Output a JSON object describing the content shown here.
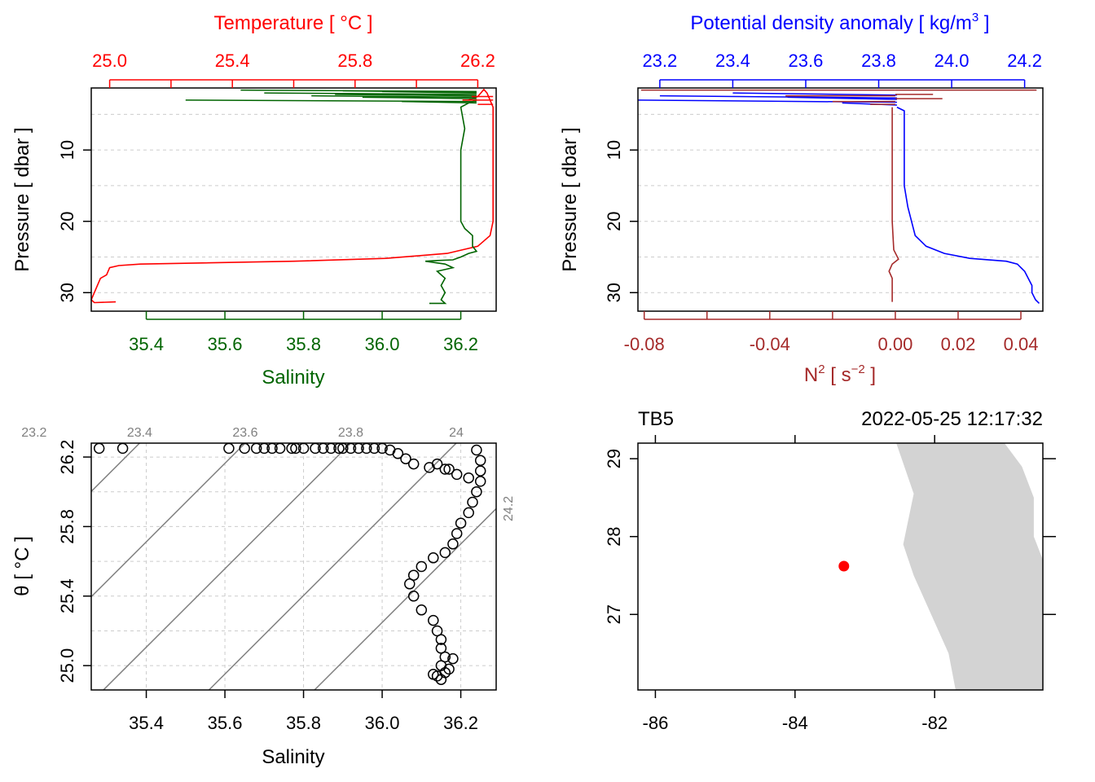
{
  "chart_data": [
    {
      "type": "line",
      "panel": "temperature-salinity-profile",
      "top_axis": {
        "label": "Temperature [ °C ]",
        "ticks": [
          25.0,
          25.4,
          25.8,
          26.2
        ],
        "tick_labels": [
          "25.0",
          "25.4",
          "25.8",
          "26.2"
        ],
        "range": [
          24.94,
          26.26
        ],
        "color": "#ff0000"
      },
      "bottom_axis": {
        "label": "Salinity",
        "ticks": [
          35.4,
          35.6,
          35.8,
          36.0,
          36.2
        ],
        "tick_labels": [
          "35.4",
          "35.6",
          "35.8",
          "36.0",
          "36.2"
        ],
        "range": [
          35.26,
          36.29
        ],
        "color": "#006400"
      },
      "left_axis": {
        "label": "Pressure [ dbar ]",
        "ticks": [
          10,
          20,
          30
        ],
        "tick_labels": [
          "10",
          "20",
          "30"
        ],
        "range": [
          1.3,
          32.6
        ],
        "reversed": true
      },
      "series": [
        {
          "name": "Temperature",
          "color": "#ff0000",
          "axis": "top",
          "points": [
            [
              26.17,
              3
            ],
            [
              26.2,
              2.5
            ],
            [
              26.22,
              1.5
            ],
            [
              26.23,
              2
            ],
            [
              26.24,
              3
            ],
            [
              26.25,
              4
            ],
            [
              26.25,
              8
            ],
            [
              26.25,
              12
            ],
            [
              26.25,
              16
            ],
            [
              26.25,
              20
            ],
            [
              26.24,
              22
            ],
            [
              26.2,
              23.5
            ],
            [
              26.1,
              24.5
            ],
            [
              25.9,
              25.2
            ],
            [
              25.6,
              25.6
            ],
            [
              25.1,
              26
            ],
            [
              25.03,
              26.2
            ],
            [
              25.0,
              26.5
            ],
            [
              24.99,
              27.5
            ],
            [
              24.97,
              28
            ],
            [
              24.96,
              29
            ],
            [
              24.95,
              30
            ],
            [
              24.94,
              31
            ],
            [
              24.95,
              31.4
            ],
            [
              25.02,
              31.3
            ]
          ]
        },
        {
          "name": "Salinity",
          "color": "#006400",
          "axis": "bottom",
          "points": [
            [
              36.24,
              3
            ],
            [
              36.22,
              3.4
            ],
            [
              36.2,
              4
            ],
            [
              36.21,
              7
            ],
            [
              36.2,
              10
            ],
            [
              36.2,
              14
            ],
            [
              36.2,
              18
            ],
            [
              36.2,
              20
            ],
            [
              36.21,
              21
            ],
            [
              36.23,
              22
            ],
            [
              36.23,
              23.5
            ],
            [
              36.24,
              24.2
            ],
            [
              36.22,
              24.5
            ],
            [
              36.2,
              25
            ],
            [
              36.18,
              25.4
            ],
            [
              36.14,
              25.5
            ],
            [
              36.11,
              25.6
            ],
            [
              36.16,
              26
            ],
            [
              36.18,
              26.5
            ],
            [
              36.14,
              27
            ],
            [
              36.16,
              28
            ],
            [
              36.15,
              29
            ],
            [
              36.16,
              30
            ],
            [
              36.15,
              31
            ],
            [
              36.16,
              31.5
            ],
            [
              36.12,
              31.5
            ]
          ]
        }
      ]
    },
    {
      "type": "line",
      "panel": "density-n2-profile",
      "top_axis": {
        "label": "Potential density anomaly [ kg/m³ ]",
        "ticks": [
          23.2,
          23.4,
          23.6,
          23.8,
          24.0,
          24.2
        ],
        "tick_labels": [
          "23.2",
          "23.4",
          "23.6",
          "23.8",
          "24.0",
          "24.2"
        ],
        "range": [
          23.14,
          24.25
        ],
        "color": "#0000ff"
      },
      "bottom_axis": {
        "label": "N² [ s⁻² ]",
        "ticks": [
          -0.08,
          -0.04,
          0.0,
          0.02,
          0.04
        ],
        "tick_labels": [
          "-0.08",
          "-0.04",
          "0.00",
          "0.02",
          "0.04"
        ],
        "minor_ticks": [
          -0.06,
          -0.02
        ],
        "range": [
          -0.082,
          0.047
        ],
        "color": "#a52a2a"
      },
      "left_axis": {
        "label": "Pressure [ dbar ]",
        "ticks": [
          10,
          20,
          30
        ],
        "tick_labels": [
          "10",
          "20",
          "30"
        ],
        "range": [
          1.3,
          32.6
        ],
        "reversed": true
      },
      "series": [
        {
          "name": "Potential density anomaly",
          "color": "#0000ff",
          "axis": "top",
          "points": [
            [
              23.85,
              4
            ],
            [
              23.87,
              4.5
            ],
            [
              23.87,
              10
            ],
            [
              23.87,
              15
            ],
            [
              23.88,
              18
            ],
            [
              23.89,
              20
            ],
            [
              23.9,
              22
            ],
            [
              23.93,
              23.5
            ],
            [
              23.98,
              24.5
            ],
            [
              24.05,
              25.2
            ],
            [
              24.15,
              25.6
            ],
            [
              24.18,
              26
            ],
            [
              24.2,
              27
            ],
            [
              24.21,
              28
            ],
            [
              24.22,
              29
            ],
            [
              24.22,
              30
            ],
            [
              24.23,
              31
            ],
            [
              24.24,
              31.5
            ]
          ]
        },
        {
          "name": "N2",
          "color": "#a52a2a",
          "axis": "bottom",
          "points": [
            [
              -0.001,
              4
            ],
            [
              -0.001,
              10
            ],
            [
              -0.001,
              20
            ],
            [
              -0.0005,
              24
            ],
            [
              0.001,
              25.3
            ],
            [
              -0.001,
              26
            ],
            [
              -0.002,
              27
            ],
            [
              -0.001,
              28
            ],
            [
              -0.001,
              30
            ],
            [
              -0.001,
              31.3
            ]
          ]
        }
      ]
    },
    {
      "type": "scatter",
      "panel": "ts-diagram",
      "xlabel": "Salinity",
      "ylabel": "θ [ °C ]",
      "xlim": [
        35.26,
        36.29
      ],
      "ylim": [
        24.86,
        26.28
      ],
      "x_ticks": [
        35.4,
        35.6,
        35.8,
        36.0,
        36.2
      ],
      "x_tick_labels": [
        "35.4",
        "35.6",
        "35.8",
        "36.0",
        "36.2"
      ],
      "y_ticks": [
        25.0,
        25.4,
        25.8,
        26.2
      ],
      "y_tick_labels": [
        "25.0",
        "25.4",
        "25.8",
        "26.2"
      ],
      "isopycnal_labels": [
        "23.2",
        "23.4",
        "23.6",
        "23.8",
        "24",
        "24.2"
      ],
      "isopycnal_values": [
        23.2,
        23.4,
        23.6,
        23.8,
        24.0,
        24.2
      ],
      "points": [
        [
          35.28,
          26.25
        ],
        [
          35.34,
          26.25
        ],
        [
          35.61,
          26.25
        ],
        [
          35.65,
          26.25
        ],
        [
          35.68,
          26.25
        ],
        [
          35.7,
          26.25
        ],
        [
          35.72,
          26.25
        ],
        [
          35.74,
          26.25
        ],
        [
          35.77,
          26.25
        ],
        [
          35.78,
          26.25
        ],
        [
          35.8,
          26.25
        ],
        [
          35.83,
          26.25
        ],
        [
          35.85,
          26.25
        ],
        [
          35.87,
          26.25
        ],
        [
          35.89,
          26.25
        ],
        [
          35.9,
          26.25
        ],
        [
          35.92,
          26.25
        ],
        [
          35.94,
          26.25
        ],
        [
          35.96,
          26.25
        ],
        [
          35.98,
          26.25
        ],
        [
          36.0,
          26.25
        ],
        [
          36.02,
          26.24
        ],
        [
          36.04,
          26.22
        ],
        [
          36.06,
          26.19
        ],
        [
          36.08,
          26.16
        ],
        [
          36.12,
          26.14
        ],
        [
          36.16,
          26.13
        ],
        [
          36.19,
          26.1
        ],
        [
          36.22,
          26.08
        ],
        [
          36.17,
          26.13
        ],
        [
          36.14,
          26.16
        ],
        [
          36.24,
          26.24
        ],
        [
          36.25,
          26.18
        ],
        [
          36.25,
          26.12
        ],
        [
          36.25,
          26.06
        ],
        [
          36.24,
          26.0
        ],
        [
          36.23,
          25.94
        ],
        [
          36.22,
          25.88
        ],
        [
          36.2,
          25.82
        ],
        [
          36.19,
          25.76
        ],
        [
          36.18,
          25.7
        ],
        [
          36.16,
          25.65
        ],
        [
          36.13,
          25.62
        ],
        [
          36.1,
          25.57
        ],
        [
          36.08,
          25.52
        ],
        [
          36.07,
          25.47
        ],
        [
          36.08,
          25.4
        ],
        [
          36.1,
          25.32
        ],
        [
          36.13,
          25.26
        ],
        [
          36.14,
          25.2
        ],
        [
          36.15,
          25.15
        ],
        [
          36.15,
          25.1
        ],
        [
          36.16,
          25.05
        ],
        [
          36.15,
          25.0
        ],
        [
          36.16,
          24.96
        ],
        [
          36.14,
          24.94
        ],
        [
          36.18,
          25.04
        ],
        [
          36.17,
          24.98
        ],
        [
          36.13,
          24.95
        ],
        [
          36.15,
          24.92
        ]
      ]
    },
    {
      "type": "scatter",
      "panel": "station-map",
      "station": "TB5",
      "datetime": "2022-05-25 12:17:32",
      "xlim": [
        -86.25,
        -80.45
      ],
      "ylim": [
        26.03,
        29.2
      ],
      "x_ticks": [
        -86,
        -84,
        -82
      ],
      "x_tick_labels": [
        "-86",
        "-84",
        "-82"
      ],
      "y_ticks": [
        27,
        28,
        29
      ],
      "y_tick_labels": [
        "27",
        "28",
        "29"
      ],
      "station_position": [
        -83.3,
        27.62
      ],
      "land_polygon": [
        [
          -82.55,
          29.2
        ],
        [
          -82.3,
          28.55
        ],
        [
          -82.45,
          27.9
        ],
        [
          -82.3,
          27.5
        ],
        [
          -81.8,
          26.5
        ],
        [
          -81.7,
          26.03
        ],
        [
          -80.45,
          26.03
        ],
        [
          -80.45,
          27.7
        ],
        [
          -80.58,
          28.0
        ],
        [
          -80.58,
          28.5
        ],
        [
          -80.75,
          28.9
        ],
        [
          -81.0,
          29.2
        ]
      ],
      "station_color": "#ff0000",
      "land_color": "#d3d3d3"
    }
  ]
}
